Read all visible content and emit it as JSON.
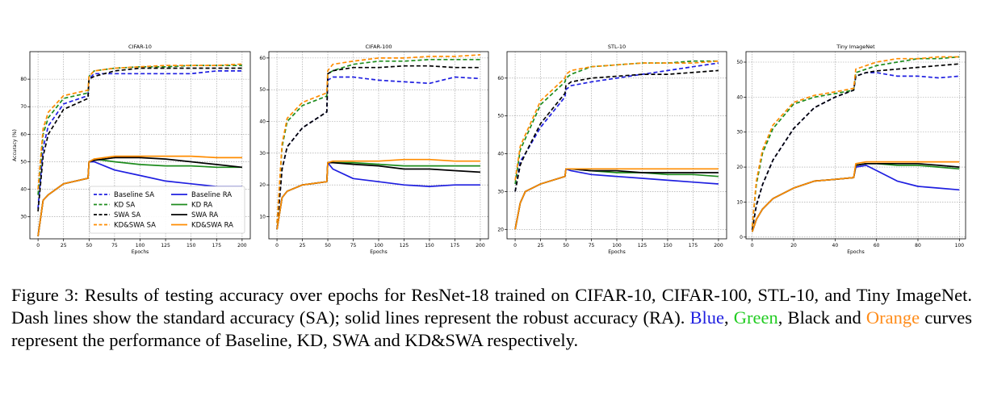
{
  "colors": {
    "Baseline": "#1f1fe0",
    "KD": "#1e8c1e",
    "SWA": "#000000",
    "KD&SWA": "#ff8c00"
  },
  "caption": {
    "label": "Figure 3:",
    "part1": " Results of testing accuracy over epochs for ResNet-18 trained on CIFAR-10, CIFAR-100, STL-10, and Tiny ImageNet. Dash lines show the standard accuracy (SA); solid lines represent the robust accuracy (RA). ",
    "blue": "Blue",
    "sep1": ", ",
    "green": "Green",
    "part2": ", Black and ",
    "orange": "Orange",
    "part3": " curves represent the performance of Baseline, KD, SWA and KD&SWA respectively."
  },
  "chart_data": [
    {
      "type": "line",
      "title": "CIFAR-10",
      "xlabel": "Epochs",
      "ylabel": "Accuracy (%)",
      "xlim": [
        -8,
        208
      ],
      "ylim": [
        22,
        90
      ],
      "xticks": [
        0,
        25,
        50,
        75,
        100,
        125,
        150,
        175,
        200
      ],
      "yticks": [
        30,
        40,
        50,
        60,
        70,
        80
      ],
      "grid": true,
      "legend": "lower-center",
      "x": [
        0,
        5,
        10,
        25,
        49,
        50,
        55,
        75,
        100,
        125,
        150,
        175,
        200
      ],
      "series": [
        {
          "name": "Baseline SA",
          "method": "Baseline",
          "style": "dash",
          "values": [
            33,
            55,
            63,
            71,
            74,
            80,
            82,
            82,
            82,
            82,
            82,
            83,
            83
          ]
        },
        {
          "name": "KD SA",
          "method": "KD",
          "style": "dash",
          "values": [
            38,
            60,
            66,
            73,
            75,
            81,
            83,
            84,
            84.5,
            84.5,
            85,
            85,
            85
          ]
        },
        {
          "name": "SWA SA",
          "method": "SWA",
          "style": "dash",
          "values": [
            32,
            52,
            60,
            69,
            73,
            80,
            81,
            83,
            84,
            84,
            84,
            84,
            84
          ]
        },
        {
          "name": "KD&SWA SA",
          "method": "KD&SWA",
          "style": "dash",
          "values": [
            40,
            62,
            68,
            74,
            76,
            81,
            83,
            84,
            84.5,
            85,
            85,
            85,
            85.5
          ]
        },
        {
          "name": "Baseline RA",
          "method": "Baseline",
          "style": "solid",
          "values": [
            23,
            36,
            38,
            42,
            44,
            50,
            50,
            47,
            45,
            43,
            42,
            41,
            41
          ]
        },
        {
          "name": "KD RA",
          "method": "KD",
          "style": "solid",
          "values": [
            23,
            36,
            38,
            42,
            44,
            50,
            51,
            50,
            49,
            48.5,
            48.5,
            48,
            48
          ]
        },
        {
          "name": "SWA RA",
          "method": "SWA",
          "style": "solid",
          "values": [
            23,
            36,
            38,
            42,
            44,
            50,
            50.5,
            51.5,
            51.5,
            51,
            50,
            49,
            48
          ]
        },
        {
          "name": "KD&SWA RA",
          "method": "KD&SWA",
          "style": "solid",
          "values": [
            23,
            36,
            38,
            42,
            44,
            50,
            51,
            52,
            52,
            52,
            52,
            51.5,
            51.5
          ]
        }
      ]
    },
    {
      "type": "line",
      "title": "CIFAR-100",
      "xlabel": "Epochs",
      "ylabel": "",
      "xlim": [
        -8,
        208
      ],
      "ylim": [
        3,
        62
      ],
      "xticks": [
        0,
        25,
        50,
        75,
        100,
        125,
        150,
        175,
        200
      ],
      "yticks": [
        10,
        20,
        30,
        40,
        50,
        60
      ],
      "grid": true,
      "legend": "none",
      "x": [
        0,
        5,
        10,
        25,
        49,
        50,
        55,
        75,
        100,
        125,
        150,
        175,
        200
      ],
      "series": [
        {
          "name": "Baseline SA",
          "method": "Baseline",
          "style": "dash",
          "values": [
            6,
            25,
            32,
            38,
            43,
            53,
            54,
            54,
            53,
            52.5,
            52,
            54,
            53.5
          ]
        },
        {
          "name": "KD SA",
          "method": "KD",
          "style": "dash",
          "values": [
            8,
            32,
            40,
            45,
            48,
            55,
            56,
            58,
            59,
            59,
            59.5,
            59.5,
            59.5
          ]
        },
        {
          "name": "SWA SA",
          "method": "SWA",
          "style": "dash",
          "values": [
            6,
            25,
            32,
            38,
            43,
            55,
            56,
            57,
            57,
            57.5,
            57.5,
            57,
            57
          ]
        },
        {
          "name": "KD&SWA SA",
          "method": "KD&SWA",
          "style": "dash",
          "values": [
            8,
            33,
            41,
            46,
            49,
            56,
            58,
            59,
            60,
            60,
            60.5,
            60.5,
            61
          ]
        },
        {
          "name": "Baseline RA",
          "method": "Baseline",
          "style": "solid",
          "values": [
            6,
            16,
            18,
            20,
            21,
            27,
            25,
            22,
            21,
            20,
            19.5,
            20,
            20
          ]
        },
        {
          "name": "KD RA",
          "method": "KD",
          "style": "solid",
          "values": [
            6,
            16,
            18,
            20,
            21,
            27,
            27,
            27,
            26.5,
            26,
            26,
            26,
            26
          ]
        },
        {
          "name": "SWA RA",
          "method": "SWA",
          "style": "solid",
          "values": [
            6,
            16,
            18,
            20,
            21,
            27,
            27,
            26.5,
            26,
            25,
            25,
            24.5,
            24
          ]
        },
        {
          "name": "KD&SWA RA",
          "method": "KD&SWA",
          "style": "solid",
          "values": [
            6,
            16,
            18,
            20,
            21,
            27,
            27.5,
            27.5,
            27.5,
            28,
            28,
            27.5,
            27.5
          ]
        }
      ]
    },
    {
      "type": "line",
      "title": "STL-10",
      "xlabel": "Epochs",
      "ylabel": "",
      "xlim": [
        -8,
        208
      ],
      "ylim": [
        17.5,
        67
      ],
      "xticks": [
        0,
        25,
        50,
        75,
        100,
        125,
        150,
        175,
        200
      ],
      "yticks": [
        20,
        30,
        40,
        50,
        60
      ],
      "grid": true,
      "legend": "none",
      "x": [
        0,
        5,
        10,
        25,
        49,
        50,
        55,
        75,
        100,
        125,
        150,
        175,
        200
      ],
      "series": [
        {
          "name": "Baseline SA",
          "method": "Baseline",
          "style": "dash",
          "values": [
            30,
            38,
            40,
            47,
            55,
            57,
            58,
            59,
            60,
            61,
            62,
            63,
            64
          ]
        },
        {
          "name": "KD SA",
          "method": "KD",
          "style": "dash",
          "values": [
            32,
            41,
            44,
            53,
            59,
            60,
            61,
            63,
            63.5,
            64,
            64,
            64.5,
            64.5
          ]
        },
        {
          "name": "SWA SA",
          "method": "SWA",
          "style": "dash",
          "values": [
            30,
            37,
            40,
            48,
            56,
            58,
            59,
            60,
            60.5,
            61,
            61,
            61.5,
            62
          ]
        },
        {
          "name": "KD&SWA SA",
          "method": "KD&SWA",
          "style": "dash",
          "values": [
            33,
            42,
            45,
            54,
            60,
            61,
            62,
            63,
            63.5,
            64,
            64,
            64,
            64.5
          ]
        },
        {
          "name": "Baseline RA",
          "method": "Baseline",
          "style": "solid",
          "values": [
            20,
            27,
            30,
            32,
            34,
            36,
            35.5,
            34.5,
            34,
            33.5,
            33,
            32.5,
            32
          ]
        },
        {
          "name": "KD RA",
          "method": "KD",
          "style": "solid",
          "values": [
            20,
            27,
            30,
            32,
            34,
            36,
            36,
            35.5,
            35,
            35,
            34.5,
            34.5,
            34
          ]
        },
        {
          "name": "SWA RA",
          "method": "SWA",
          "style": "solid",
          "values": [
            20,
            27,
            30,
            32,
            34,
            36,
            36,
            35.5,
            35.5,
            35,
            35,
            35,
            35
          ]
        },
        {
          "name": "KD&SWA RA",
          "method": "KD&SWA",
          "style": "solid",
          "values": [
            20,
            27,
            30,
            32,
            34,
            36,
            36,
            36,
            36,
            36,
            36,
            36,
            36
          ]
        }
      ]
    },
    {
      "type": "line",
      "title": "Tiny ImageNet",
      "xlabel": "Epochs",
      "ylabel": "",
      "xlim": [
        -3,
        103
      ],
      "ylim": [
        -0.5,
        53
      ],
      "xticks": [
        0,
        20,
        40,
        60,
        80,
        100
      ],
      "yticks": [
        0,
        10,
        20,
        30,
        40,
        50
      ],
      "grid": true,
      "legend": "none",
      "x": [
        0,
        2,
        5,
        10,
        20,
        30,
        40,
        49,
        50,
        55,
        60,
        70,
        80,
        90,
        100
      ],
      "series": [
        {
          "name": "Baseline SA",
          "method": "Baseline",
          "style": "dash",
          "values": [
            2,
            9,
            15,
            22,
            31,
            37,
            40,
            42,
            46,
            47,
            47,
            46,
            46,
            45.5,
            46
          ]
        },
        {
          "name": "KD SA",
          "method": "KD",
          "style": "dash",
          "values": [
            3,
            15,
            24,
            31,
            38,
            40,
            41,
            42,
            47,
            48,
            49,
            50,
            51,
            51,
            51.5
          ]
        },
        {
          "name": "SWA SA",
          "method": "SWA",
          "style": "dash",
          "values": [
            2,
            9,
            15,
            22,
            31,
            37,
            40,
            42,
            46,
            47,
            47.5,
            48,
            48.5,
            49,
            49.5
          ]
        },
        {
          "name": "KD&SWA SA",
          "method": "KD&SWA",
          "style": "dash",
          "values": [
            3,
            16,
            25,
            32,
            38.5,
            40.5,
            41.5,
            42.5,
            48,
            49,
            50,
            51,
            51,
            51.5,
            51.5
          ]
        },
        {
          "name": "Baseline RA",
          "method": "Baseline",
          "style": "solid",
          "values": [
            1.5,
            5,
            8,
            11,
            14,
            16,
            16.5,
            17,
            20,
            20.5,
            19,
            16,
            14.5,
            14,
            13.5
          ]
        },
        {
          "name": "KD RA",
          "method": "KD",
          "style": "solid",
          "values": [
            1.5,
            5,
            8,
            11,
            14,
            16,
            16.5,
            17,
            20.5,
            21,
            21,
            20.5,
            20.5,
            20,
            19.5
          ]
        },
        {
          "name": "SWA RA",
          "method": "SWA",
          "style": "solid",
          "values": [
            1.5,
            5,
            8,
            11,
            14,
            16,
            16.5,
            17,
            20.5,
            21,
            21,
            21,
            21,
            20.5,
            20
          ]
        },
        {
          "name": "KD&SWA RA",
          "method": "KD&SWA",
          "style": "solid",
          "values": [
            1.5,
            5,
            8,
            11,
            14,
            16,
            16.5,
            17,
            21,
            21.5,
            21.5,
            21.5,
            21.5,
            21.5,
            21.5
          ]
        }
      ]
    }
  ]
}
